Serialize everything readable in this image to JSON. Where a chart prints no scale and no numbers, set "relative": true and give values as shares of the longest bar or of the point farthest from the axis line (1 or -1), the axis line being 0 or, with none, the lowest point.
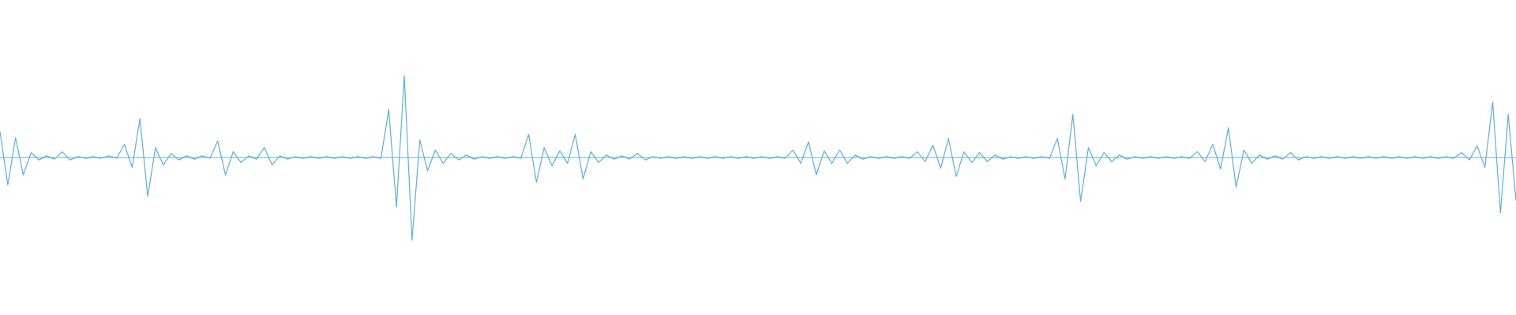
{
  "chart_data": {
    "type": "line",
    "relative": true,
    "ref_lines": [
      {
        "axis": "y",
        "value": 0,
        "color": "#5faee3"
      }
    ],
    "categories": [
      null,
      null,
      null,
      null,
      null,
      null,
      null,
      null,
      null,
      null,
      null,
      null,
      null,
      null,
      null,
      null,
      null,
      null,
      null,
      null,
      null,
      null,
      null,
      null,
      null,
      null,
      null,
      null,
      null,
      null,
      null,
      null,
      null,
      null,
      null,
      null,
      null,
      null,
      null,
      null,
      null,
      null,
      null,
      null,
      null,
      null,
      null,
      null,
      null,
      null,
      null,
      null,
      null,
      null,
      null,
      null,
      null,
      null,
      null,
      null,
      null,
      null,
      null,
      null,
      null,
      null,
      null,
      null,
      null,
      null,
      null,
      null,
      null,
      null,
      null,
      null,
      null,
      null,
      null,
      null,
      null,
      null,
      null,
      null,
      null,
      null,
      null,
      null,
      null,
      null,
      null,
      null,
      null,
      null,
      null,
      null,
      null,
      null,
      null,
      null,
      null,
      null,
      null,
      null,
      null,
      null,
      null,
      null,
      null,
      null,
      null,
      null,
      null,
      null,
      null,
      null,
      null,
      null,
      null,
      null,
      null,
      null,
      null,
      null,
      null,
      null,
      null,
      null,
      null,
      null,
      null,
      null,
      null,
      null,
      null,
      null,
      null,
      null,
      null,
      null,
      null,
      null,
      null,
      null,
      null,
      null,
      null,
      null,
      null,
      null,
      null,
      null,
      null,
      null,
      null,
      null,
      null,
      null,
      null,
      null,
      null,
      null,
      null,
      null,
      null,
      null,
      null,
      null,
      null,
      null,
      null,
      null,
      null,
      null,
      null,
      null,
      null,
      null,
      null,
      null,
      null,
      null,
      null,
      null,
      null,
      null,
      null,
      null,
      null,
      null,
      null,
      null,
      null,
      null,
      null,
      null
    ],
    "series": [
      {
        "color": "#5faee3",
        "values": [
          0.31,
          -0.33,
          0.24,
          -0.21,
          0.06,
          -0.03,
          0.02,
          -0.02,
          0.07,
          -0.03,
          0.01,
          -0.01,
          0.01,
          -0.01,
          0.02,
          -0.01,
          0.16,
          -0.12,
          0.47,
          -0.47,
          0.12,
          -0.09,
          0.05,
          -0.03,
          0.02,
          -0.02,
          0.02,
          -0.01,
          0.2,
          -0.21,
          0.07,
          -0.06,
          0.02,
          -0.02,
          0.12,
          -0.09,
          0.02,
          -0.02,
          0.01,
          -0.01,
          0.01,
          -0.01,
          0.01,
          -0.01,
          0.01,
          -0.01,
          0.01,
          -0.01,
          0.01,
          -0.01,
          0.58,
          -0.6,
          0.99,
          -1,
          0.21,
          -0.16,
          0.09,
          -0.07,
          0.05,
          -0.03,
          0.03,
          -0.02,
          0.01,
          -0.01,
          0.01,
          -0.01,
          0.01,
          -0.01,
          0.28,
          -0.3,
          0.12,
          -0.1,
          0.08,
          -0.07,
          0.28,
          -0.26,
          0.07,
          -0.06,
          0.03,
          -0.02,
          0.02,
          -0.02,
          0.05,
          -0.03,
          0.01,
          -0.01,
          0.01,
          -0.01,
          0.01,
          -0.01,
          0.01,
          -0.01,
          0.01,
          -0.01,
          0.01,
          -0.01,
          0.01,
          -0.01,
          0.01,
          -0.01,
          0.01,
          -0.01,
          0.09,
          -0.07,
          0.19,
          -0.21,
          0.08,
          -0.07,
          0.09,
          -0.07,
          0.03,
          -0.02,
          0.01,
          -0.01,
          0.01,
          -0.01,
          0.01,
          -0.01,
          0.07,
          -0.05,
          0.15,
          -0.13,
          0.23,
          -0.23,
          0.07,
          -0.06,
          0.06,
          -0.05,
          0.03,
          -0.02,
          0.01,
          -0.01,
          0.01,
          -0.01,
          0.01,
          -0.01,
          0.23,
          -0.26,
          0.52,
          -0.53,
          0.12,
          -0.1,
          0.06,
          -0.05,
          0.03,
          -0.02,
          0.01,
          -0.01,
          0.01,
          -0.01,
          0.01,
          -0.01,
          0.01,
          -0.01,
          0.07,
          -0.05,
          0.16,
          -0.14,
          0.36,
          -0.36,
          0.09,
          -0.07,
          0.03,
          -0.02,
          0.02,
          -0.02,
          0.06,
          -0.03,
          0.01,
          -0.01,
          0.01,
          -0.01,
          0.01,
          -0.01,
          0.01,
          -0.01,
          0.01,
          -0.01,
          0.01,
          -0.01,
          0.01,
          -0.01,
          0.01,
          -0.01,
          0.01,
          -0.01,
          0.01,
          -0.01,
          0.06,
          -0.03,
          0.14,
          -0.12,
          0.67,
          -0.67,
          0.52,
          -0.52
        ]
      }
    ]
  }
}
